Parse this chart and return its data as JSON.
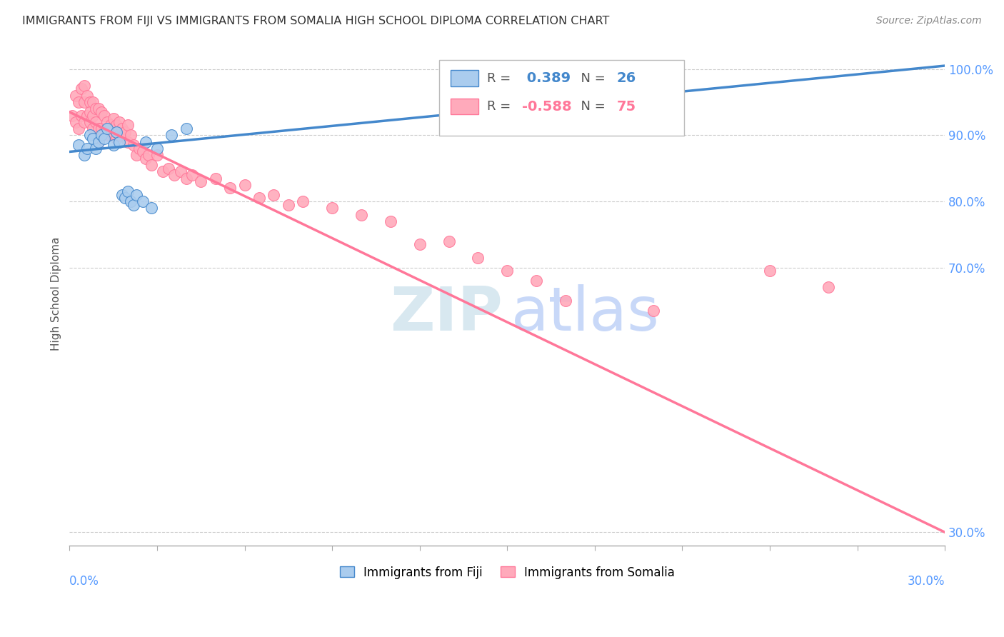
{
  "title": "IMMIGRANTS FROM FIJI VS IMMIGRANTS FROM SOMALIA HIGH SCHOOL DIPLOMA CORRELATION CHART",
  "source": "Source: ZipAtlas.com",
  "ylabel": "High School Diploma",
  "x_range": [
    0.0,
    30.0
  ],
  "y_range": [
    28.0,
    104.0
  ],
  "fiji_R": 0.389,
  "fiji_N": 26,
  "somalia_R": -0.588,
  "somalia_N": 75,
  "fiji_color": "#aaccee",
  "somalia_color": "#ffaabb",
  "fiji_line_color": "#4488cc",
  "somalia_line_color": "#ff7799",
  "fiji_x": [
    0.3,
    0.5,
    0.6,
    0.7,
    0.8,
    0.9,
    1.0,
    1.1,
    1.2,
    1.3,
    1.5,
    1.6,
    1.7,
    1.8,
    1.9,
    2.0,
    2.1,
    2.2,
    2.3,
    2.5,
    2.6,
    2.8,
    3.0,
    3.5,
    4.0,
    20.5
  ],
  "fiji_y": [
    88.5,
    87.0,
    88.0,
    90.0,
    89.5,
    88.0,
    89.0,
    90.0,
    89.5,
    91.0,
    88.5,
    90.5,
    89.0,
    81.0,
    80.5,
    81.5,
    80.0,
    79.5,
    81.0,
    80.0,
    89.0,
    79.0,
    88.0,
    90.0,
    91.0,
    100.5
  ],
  "somalia_x": [
    0.1,
    0.2,
    0.2,
    0.3,
    0.3,
    0.4,
    0.4,
    0.5,
    0.5,
    0.5,
    0.6,
    0.6,
    0.7,
    0.7,
    0.7,
    0.8,
    0.8,
    0.8,
    0.9,
    0.9,
    1.0,
    1.0,
    1.0,
    1.1,
    1.1,
    1.2,
    1.2,
    1.3,
    1.3,
    1.4,
    1.5,
    1.5,
    1.6,
    1.6,
    1.7,
    1.7,
    1.8,
    1.9,
    2.0,
    2.0,
    2.1,
    2.2,
    2.3,
    2.4,
    2.5,
    2.6,
    2.7,
    2.8,
    3.0,
    3.2,
    3.4,
    3.6,
    3.8,
    4.0,
    4.2,
    4.5,
    5.0,
    5.5,
    6.0,
    6.5,
    7.0,
    7.5,
    8.0,
    9.0,
    10.0,
    11.0,
    12.0,
    13.0,
    14.0,
    15.0,
    16.0,
    17.0,
    20.0,
    24.0,
    26.0
  ],
  "somalia_y": [
    93.0,
    96.0,
    92.0,
    95.0,
    91.0,
    97.0,
    93.0,
    97.5,
    95.0,
    92.0,
    96.0,
    93.0,
    95.0,
    93.5,
    92.0,
    95.0,
    93.0,
    91.0,
    94.0,
    92.0,
    94.0,
    91.0,
    89.0,
    93.5,
    91.0,
    93.0,
    90.5,
    92.0,
    90.0,
    91.5,
    92.5,
    90.0,
    91.5,
    89.5,
    92.0,
    90.0,
    91.0,
    90.5,
    91.5,
    89.0,
    90.0,
    88.5,
    87.0,
    88.0,
    87.5,
    86.5,
    87.0,
    85.5,
    87.0,
    84.5,
    85.0,
    84.0,
    84.5,
    83.5,
    84.0,
    83.0,
    83.5,
    82.0,
    82.5,
    80.5,
    81.0,
    79.5,
    80.0,
    79.0,
    78.0,
    77.0,
    73.5,
    74.0,
    71.5,
    69.5,
    68.0,
    65.0,
    63.5,
    69.5,
    67.0
  ],
  "fiji_trend_x": [
    0.0,
    30.0
  ],
  "fiji_trend_y": [
    87.5,
    100.5
  ],
  "somalia_trend_x": [
    0.0,
    30.0
  ],
  "somalia_trend_y": [
    93.5,
    30.0
  ],
  "y_ticks": [
    30.0,
    70.0,
    80.0,
    90.0,
    100.0
  ],
  "y_tick_labels": [
    "30.0%",
    "70.0%",
    "80.0%",
    "90.0%",
    "100.0%"
  ],
  "watermark_zip": "ZIP",
  "watermark_atlas": "atlas"
}
